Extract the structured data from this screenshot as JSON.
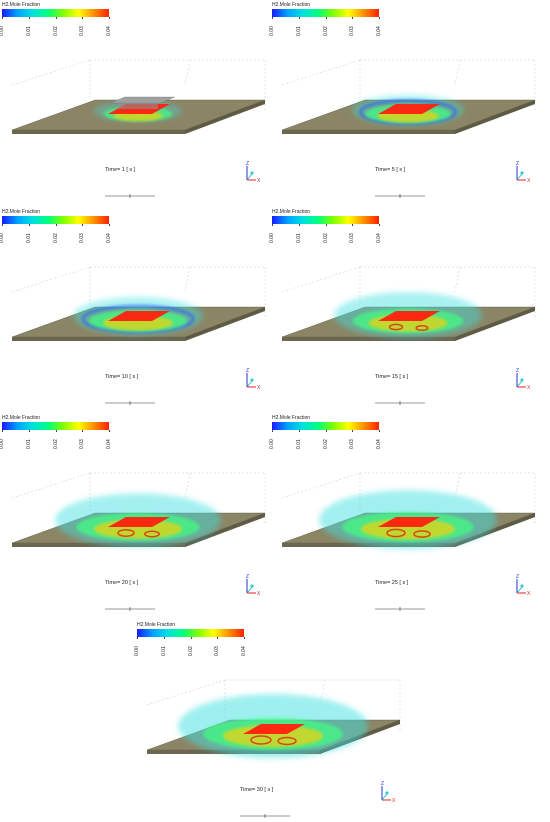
{
  "colorbar": {
    "title": "H2.Mole Fraction",
    "ticks": [
      "0.00",
      "0.01",
      "0.02",
      "0.03",
      "0.04"
    ],
    "colors": [
      "#1a1aff",
      "#00a0ff",
      "#00e0e0",
      "#00ff80",
      "#80ff00",
      "#ffff00",
      "#ff9000",
      "#ff2000"
    ]
  },
  "axes": {
    "z": "Z",
    "x": "X"
  },
  "panels": [
    {
      "time_label": "Time= 1 [ s ]",
      "time_s": 1,
      "spread": 0.15
    },
    {
      "time_label": "Time= 5 [ s ]",
      "time_s": 5,
      "spread": 0.35
    },
    {
      "time_label": "Time= 10 [ s ]",
      "time_s": 10,
      "spread": 0.5
    },
    {
      "time_label": "Time= 15 [ s ]",
      "time_s": 15,
      "spread": 0.65
    },
    {
      "time_label": "Time= 20 [ s ]",
      "time_s": 20,
      "spread": 0.8
    },
    {
      "time_label": "Time= 25 [ s ]",
      "time_s": 25,
      "spread": 0.9
    },
    {
      "time_label": "Time= 30 [ s ]",
      "time_s": 30,
      "spread": 1.0
    }
  ]
}
